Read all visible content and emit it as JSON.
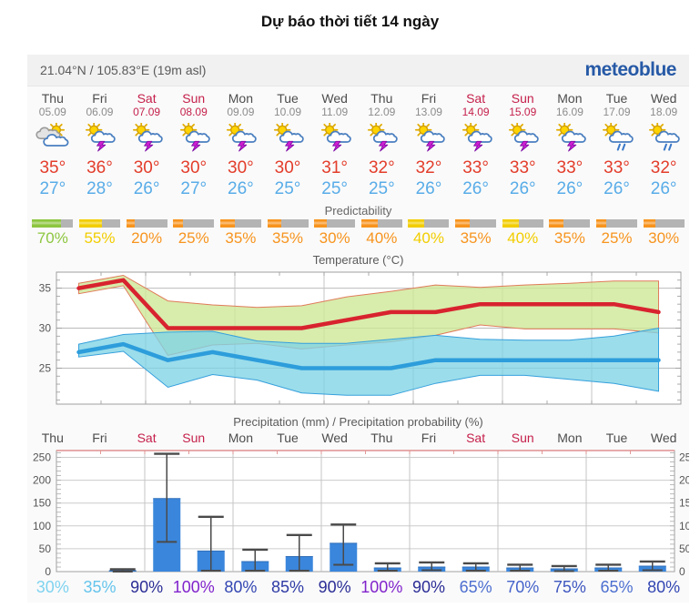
{
  "page_title": "Dự báo thời tiết 14 ngày",
  "widget": {
    "location": "21.04°N / 105.83°E (19m asl)",
    "brand": "meteoblue",
    "colors": {
      "weekday_name": "#4d4d4d",
      "weekday_date": "#8c8c8c",
      "weekend": "#c5204b",
      "tmax": "#e33d2b",
      "tmin": "#58ace8",
      "brand_blue": "#2659a6"
    },
    "days": [
      {
        "name": "Thu",
        "date": "05.09",
        "weekend": false,
        "icon": "sun-clouds-icon",
        "tmax": "35°",
        "tmin": "27°"
      },
      {
        "name": "Fri",
        "date": "06.09",
        "weekend": false,
        "icon": "thunderstorm-icon",
        "tmax": "36°",
        "tmin": "28°"
      },
      {
        "name": "Sat",
        "date": "07.09",
        "weekend": true,
        "icon": "thunderstorm-icon",
        "tmax": "30°",
        "tmin": "26°"
      },
      {
        "name": "Sun",
        "date": "08.09",
        "weekend": true,
        "icon": "thunderstorm-icon",
        "tmax": "30°",
        "tmin": "27°"
      },
      {
        "name": "Mon",
        "date": "09.09",
        "weekend": false,
        "icon": "thunderstorm-icon",
        "tmax": "30°",
        "tmin": "26°"
      },
      {
        "name": "Tue",
        "date": "10.09",
        "weekend": false,
        "icon": "thunderstorm-icon",
        "tmax": "30°",
        "tmin": "25°"
      },
      {
        "name": "Wed",
        "date": "11.09",
        "weekend": false,
        "icon": "thunderstorm-icon",
        "tmax": "31°",
        "tmin": "25°"
      },
      {
        "name": "Thu",
        "date": "12.09",
        "weekend": false,
        "icon": "thunderstorm-icon",
        "tmax": "32°",
        "tmin": "25°"
      },
      {
        "name": "Fri",
        "date": "13.09",
        "weekend": false,
        "icon": "thunderstorm-icon",
        "tmax": "32°",
        "tmin": "26°"
      },
      {
        "name": "Sat",
        "date": "14.09",
        "weekend": true,
        "icon": "thunderstorm-icon",
        "tmax": "33°",
        "tmin": "26°"
      },
      {
        "name": "Sun",
        "date": "15.09",
        "weekend": true,
        "icon": "thunderstorm-icon",
        "tmax": "33°",
        "tmin": "26°"
      },
      {
        "name": "Mon",
        "date": "16.09",
        "weekend": false,
        "icon": "thunderstorm-icon",
        "tmax": "33°",
        "tmin": "26°"
      },
      {
        "name": "Tue",
        "date": "17.09",
        "weekend": false,
        "icon": "rain-showers-icon",
        "tmax": "33°",
        "tmin": "26°"
      },
      {
        "name": "Wed",
        "date": "18.09",
        "weekend": false,
        "icon": "rain-showers-icon",
        "tmax": "32°",
        "tmin": "26°"
      }
    ],
    "predictability": {
      "label": "Predictability",
      "track_color": "#b4b4b4",
      "items": [
        {
          "label": "70%",
          "value": 70,
          "color": "#8dc63f"
        },
        {
          "label": "55%",
          "value": 55,
          "color": "#f2cd00"
        },
        {
          "label": "20%",
          "value": 20,
          "color": "#f7941e"
        },
        {
          "label": "25%",
          "value": 25,
          "color": "#f7941e"
        },
        {
          "label": "35%",
          "value": 35,
          "color": "#f7941e"
        },
        {
          "label": "35%",
          "value": 35,
          "color": "#f7941e"
        },
        {
          "label": "30%",
          "value": 30,
          "color": "#f7941e"
        },
        {
          "label": "40%",
          "value": 40,
          "color": "#f7941e"
        },
        {
          "label": "40%",
          "value": 40,
          "color": "#f2cd00"
        },
        {
          "label": "35%",
          "value": 35,
          "color": "#f7941e"
        },
        {
          "label": "40%",
          "value": 40,
          "color": "#f2cd00"
        },
        {
          "label": "35%",
          "value": 35,
          "color": "#f7941e"
        },
        {
          "label": "25%",
          "value": 25,
          "color": "#f7941e"
        },
        {
          "label": "30%",
          "value": 30,
          "color": "#f7941e"
        }
      ]
    }
  },
  "chart_data": [
    {
      "type": "line",
      "title": "Temperature (°C)",
      "categories": [
        "Thu 05.09",
        "Fri 06.09",
        "Sat 07.09",
        "Sun 08.09",
        "Mon 09.09",
        "Tue 10.09",
        "Wed 11.09",
        "Thu 12.09",
        "Fri 13.09",
        "Sat 14.09",
        "Sun 15.09",
        "Mon 16.09",
        "Tue 17.09",
        "Wed 18.09"
      ],
      "ylim": [
        20.5,
        37
      ],
      "yticks": [
        25,
        30,
        35
      ],
      "grid": true,
      "legend": "none",
      "series": [
        {
          "name": "max-temperature",
          "type": "line",
          "color": "#d8232f",
          "values": [
            35,
            36,
            30,
            30,
            30,
            30,
            31,
            32,
            32,
            33,
            33,
            33,
            33,
            32
          ]
        },
        {
          "name": "min-temperature",
          "type": "line",
          "color": "#2d9ddb",
          "values": [
            27,
            28,
            26,
            27,
            26,
            25,
            25,
            25,
            26,
            26,
            26,
            26,
            26,
            26
          ]
        },
        {
          "name": "max-temperature-range",
          "type": "band",
          "fill": "#cde795",
          "stroke": "#e07b5a",
          "upper": [
            35.6,
            36.6,
            33.4,
            32.9,
            32.6,
            32.8,
            33.9,
            34.6,
            35.4,
            35.1,
            35.4,
            35.6,
            35.9,
            35.9
          ],
          "lower": [
            34.3,
            35.3,
            26.6,
            27.9,
            28.1,
            27.4,
            27.9,
            28.3,
            29.1,
            30.4,
            29.9,
            29.9,
            29.9,
            29.4
          ]
        },
        {
          "name": "min-temperature-range",
          "type": "band",
          "fill": "#7fd4e6",
          "stroke": "#36a0dc",
          "upper": [
            28.0,
            29.2,
            29.5,
            29.6,
            28.4,
            28.1,
            28.1,
            28.6,
            29.1,
            28.6,
            28.5,
            28.5,
            29.0,
            30.0
          ],
          "lower": [
            26.4,
            27.1,
            22.6,
            24.2,
            23.5,
            21.9,
            21.6,
            21.6,
            23.1,
            24.1,
            24.1,
            23.6,
            23.1,
            22.1
          ]
        }
      ]
    },
    {
      "type": "bar",
      "title": "Precipitation (mm) / Precipitation probability (%)",
      "categories": [
        "Thu",
        "Fri",
        "Sat",
        "Sun",
        "Mon",
        "Tue",
        "Wed",
        "Thu",
        "Fri",
        "Sat",
        "Sun",
        "Mon",
        "Tue",
        "Wed"
      ],
      "weekend_flags": [
        false,
        false,
        true,
        true,
        false,
        false,
        false,
        false,
        false,
        true,
        true,
        false,
        false,
        false
      ],
      "ylim": [
        0,
        265
      ],
      "yticks": [
        0,
        50,
        100,
        150,
        200,
        250
      ],
      "grid": true,
      "bar_color": "#3a86dc",
      "whisker_color": "#4a4a4a",
      "values": [
        0,
        2,
        160,
        45,
        22,
        33,
        62,
        8,
        10,
        10,
        8,
        6,
        8,
        12
      ],
      "whisker_low": [
        0,
        0,
        65,
        2,
        2,
        2,
        15,
        2,
        3,
        2,
        2,
        1,
        2,
        3
      ],
      "whisker_high": [
        0,
        5,
        258,
        120,
        48,
        80,
        103,
        18,
        20,
        18,
        15,
        12,
        15,
        22
      ],
      "probabilities": [
        {
          "label": "30%",
          "color": "#7fd3f0"
        },
        {
          "label": "35%",
          "color": "#65c4ec"
        },
        {
          "label": "90%",
          "color": "#2b2d96"
        },
        {
          "label": "100%",
          "color": "#8123cc"
        },
        {
          "label": "80%",
          "color": "#3346b2"
        },
        {
          "label": "85%",
          "color": "#2f3ba6"
        },
        {
          "label": "90%",
          "color": "#2b2d96"
        },
        {
          "label": "100%",
          "color": "#8123cc"
        },
        {
          "label": "90%",
          "color": "#2b2d96"
        },
        {
          "label": "65%",
          "color": "#4d6fd0"
        },
        {
          "label": "70%",
          "color": "#4563cb"
        },
        {
          "label": "75%",
          "color": "#3f57c0"
        },
        {
          "label": "65%",
          "color": "#4d6fd0"
        },
        {
          "label": "80%",
          "color": "#3346b2"
        }
      ]
    }
  ]
}
